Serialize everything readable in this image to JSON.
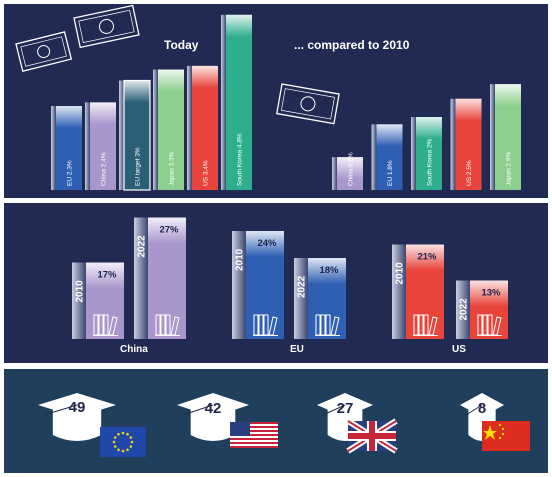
{
  "panel1": {
    "left_title": "Today",
    "right_title": "... compared to 2010",
    "today": [
      {
        "label": "EU 2.3%",
        "value": 2.3,
        "color": "#2f5fb3"
      },
      {
        "label": "China 2.4%",
        "value": 2.4,
        "color": "#a996cc"
      },
      {
        "label": "EU target 3%",
        "value": 3.0,
        "color": "#2b5f78"
      },
      {
        "label": "Japan 3.3%",
        "value": 3.3,
        "color": "#8ccf8c"
      },
      {
        "label": "US 3.4%",
        "value": 3.4,
        "color": "#e8443c"
      },
      {
        "label": "South Korea 4.8%",
        "value": 4.8,
        "color": "#2fae8e"
      }
    ],
    "y2010": [
      {
        "label": "China 0.9%",
        "value": 0.9,
        "color": "#a996cc"
      },
      {
        "label": "EU 1.8%",
        "value": 1.8,
        "color": "#2f5fb3"
      },
      {
        "label": "South Korea 2%",
        "value": 2.0,
        "color": "#2fae8e"
      },
      {
        "label": "US 2.5%",
        "value": 2.5,
        "color": "#e8443c"
      },
      {
        "label": "Japan 2.9%",
        "value": 2.9,
        "color": "#8ccf8c"
      }
    ]
  },
  "panel2": {
    "groups": [
      {
        "name": "China",
        "color": "#a996cc",
        "bars": [
          {
            "year": "2010",
            "pct": "17%",
            "value": 17
          },
          {
            "year": "2022",
            "pct": "27%",
            "value": 27
          }
        ]
      },
      {
        "name": "EU",
        "color": "#2f5fb3",
        "bars": [
          {
            "year": "2010",
            "pct": "24%",
            "value": 24
          },
          {
            "year": "2022",
            "pct": "18%",
            "value": 18
          }
        ]
      },
      {
        "name": "US",
        "color": "#e8443c",
        "bars": [
          {
            "year": "2010",
            "pct": "21%",
            "value": 21
          },
          {
            "year": "2022",
            "pct": "13%",
            "value": 13
          }
        ]
      }
    ]
  },
  "panel3": {
    "items": [
      {
        "number": "49",
        "value": 49,
        "flag": "eu-flag"
      },
      {
        "number": "42",
        "value": 42,
        "flag": "us-flag"
      },
      {
        "number": "27",
        "value": 27,
        "flag": "uk-flag"
      },
      {
        "number": "8",
        "value": 8,
        "flag": "china-flag"
      }
    ]
  },
  "chart_data": [
    {
      "type": "bar",
      "title": "Today",
      "categories": [
        "EU",
        "China",
        "EU target",
        "Japan",
        "US",
        "South Korea"
      ],
      "values": [
        2.3,
        2.4,
        3.0,
        3.3,
        3.4,
        4.8
      ]
    },
    {
      "type": "bar",
      "title": "... compared to 2010",
      "categories": [
        "China",
        "EU",
        "South Korea",
        "US",
        "Japan"
      ],
      "values": [
        0.9,
        1.8,
        2.0,
        2.5,
        2.9
      ]
    },
    {
      "type": "bar",
      "categories": [
        "China",
        "EU",
        "US"
      ],
      "series": [
        {
          "name": "2010",
          "values": [
            17,
            24,
            21
          ]
        },
        {
          "name": "2022",
          "values": [
            27,
            18,
            13
          ]
        }
      ]
    },
    {
      "type": "bar",
      "categories": [
        "EU",
        "US",
        "UK",
        "China"
      ],
      "values": [
        49,
        42,
        27,
        8
      ]
    }
  ]
}
